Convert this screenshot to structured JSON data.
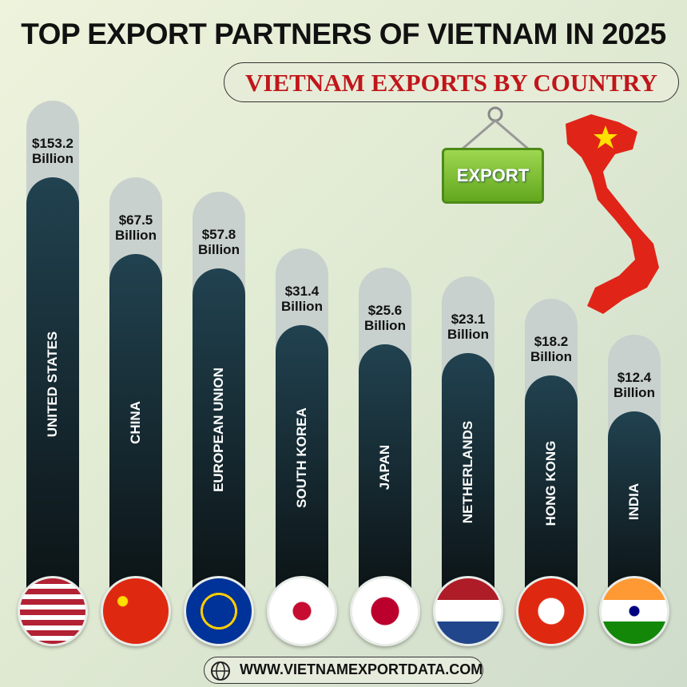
{
  "chart_data": {
    "type": "bar",
    "title": "TOP EXPORT PARTNERS OF VIETNAM IN 2025",
    "subtitle": "VIETNAM EXPORTS BY COUNTRY",
    "categories": [
      "UNITED STATES",
      "CHINA",
      "EUROPEAN UNION",
      "SOUTH KOREA",
      "JAPAN",
      "NETHERLANDS",
      "HONG KONG",
      "INDIA"
    ],
    "values": [
      153.2,
      67.5,
      57.8,
      31.4,
      25.6,
      23.1,
      18.2,
      12.4
    ],
    "value_labels": [
      "$153.2 Billion",
      "$67.5 Billion",
      "$57.8 Billion",
      "$31.4 Billion",
      "$25.6 Billion",
      "$23.1 Billion",
      "$18.2 Billion",
      "$12.4 Billion"
    ],
    "color": "#1d3a47",
    "annotations": [
      "EXPORT",
      "WWW.VIETNAMEXPORTDATA.COM"
    ]
  }
}
